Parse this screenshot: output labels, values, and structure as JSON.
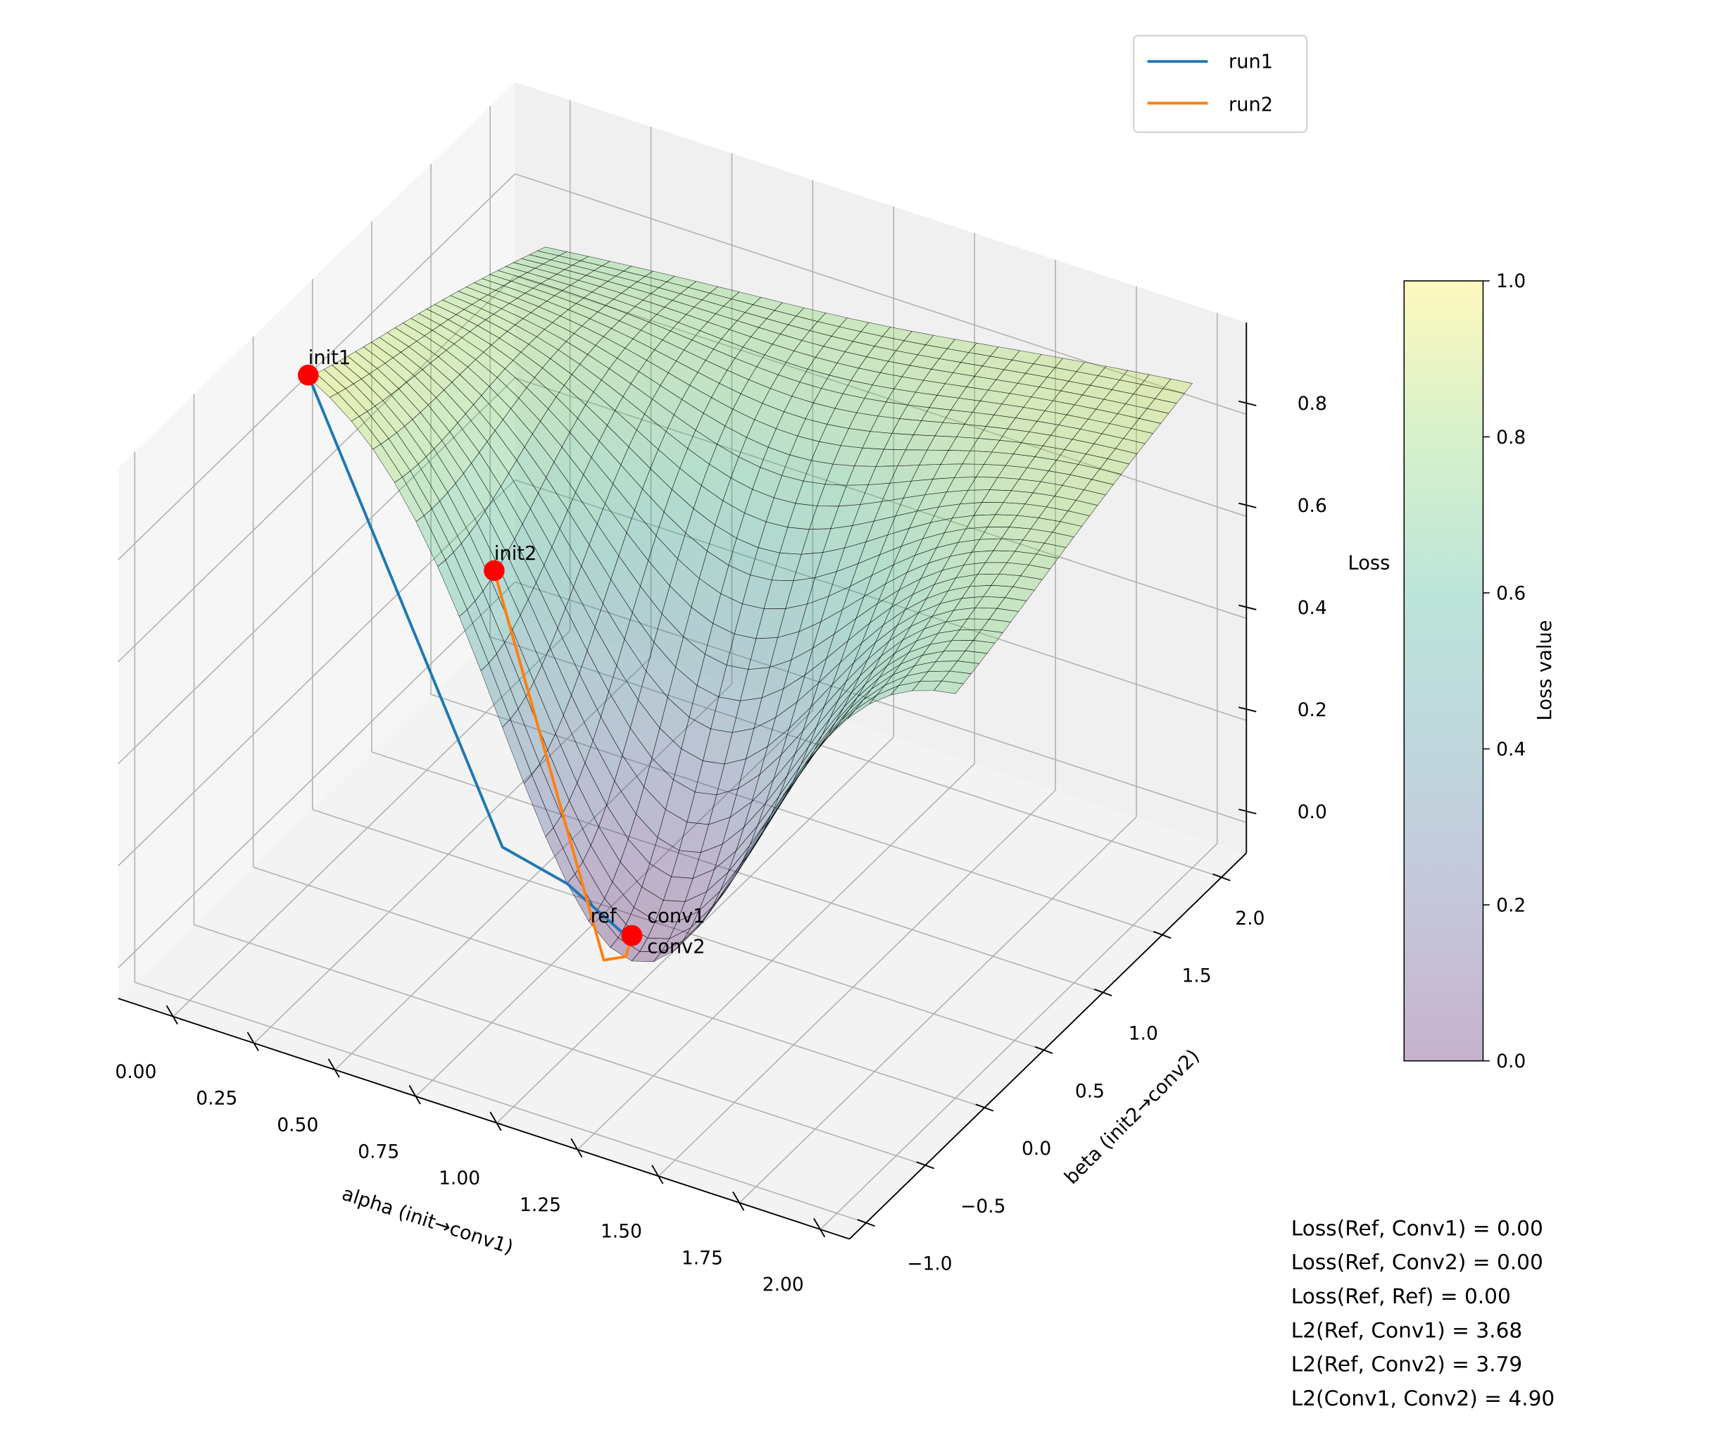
{
  "chart_data": {
    "type": "surface3d",
    "axes": {
      "x": {
        "label": "alpha (init→conv1)",
        "range": [
          -0.17,
          2.09
        ],
        "ticks": [
          "0.00",
          "0.25",
          "0.50",
          "0.75",
          "1.00",
          "1.25",
          "1.50",
          "1.75",
          "2.00"
        ]
      },
      "y": {
        "label": "beta (init2→conv2)",
        "range": [
          -1.14,
          2.21
        ],
        "ticks": [
          "−1.0",
          "−0.5",
          "0.0",
          "0.5",
          "1.0",
          "1.5",
          "2.0"
        ]
      },
      "z": {
        "label": "Loss",
        "range": [
          -0.06,
          0.98
        ],
        "ticks": [
          "0.0",
          "0.2",
          "0.4",
          "0.6",
          "0.8"
        ]
      }
    },
    "grid": true,
    "surface": {
      "colormap": "viridis",
      "alpha": 0.3,
      "alpha_range": [
        0,
        2
      ],
      "beta_range": [
        0,
        2
      ],
      "minimum": [
        1.0,
        0.0,
        0.0
      ]
    },
    "series": [
      {
        "name": "run1",
        "color": "#1f77b4",
        "points": [
          [
            0,
            0,
            0.94
          ],
          [
            0.6,
            0,
            0.14
          ],
          [
            0.8,
            0,
            0.11
          ],
          [
            0.97,
            0,
            0.05
          ],
          [
            1,
            0,
            0.05
          ]
        ]
      },
      {
        "name": "run2",
        "color": "#ff7f0e",
        "points": [
          [
            0.3,
            0.75,
            0.45
          ],
          [
            0.95,
            -0.1,
            0.014
          ],
          [
            1.0,
            -0.05,
            0.02
          ],
          [
            1,
            0,
            0.05
          ]
        ]
      }
    ],
    "markers": [
      {
        "label": "init1",
        "point": [
          0,
          0,
          0.94
        ]
      },
      {
        "label": "init2",
        "point": [
          0.3,
          0.75,
          0.45
        ]
      },
      {
        "label": "conv1",
        "point": [
          1,
          0,
          0.05
        ]
      },
      {
        "label": "conv2",
        "point": [
          1,
          0,
          0.05
        ]
      },
      {
        "label": "ref",
        "point": [
          1,
          0,
          0.05
        ]
      }
    ],
    "marker_color": "#ff0000",
    "legend": {
      "position": "top-right",
      "entries": [
        "run1",
        "run2"
      ]
    },
    "colorbar": {
      "label": "Loss value",
      "range": [
        0,
        1
      ],
      "ticks": [
        "0.0",
        "0.2",
        "0.4",
        "0.6",
        "0.8",
        "1.0"
      ]
    },
    "annotation": [
      "Loss(Ref, Conv1) = 0.00",
      "Loss(Ref, Conv2) = 0.00",
      "Loss(Ref, Ref) = 0.00",
      "L2(Ref, Conv1) = 3.68",
      "L2(Ref, Conv2) = 3.79",
      "L2(Conv1, Conv2) = 4.90"
    ]
  }
}
